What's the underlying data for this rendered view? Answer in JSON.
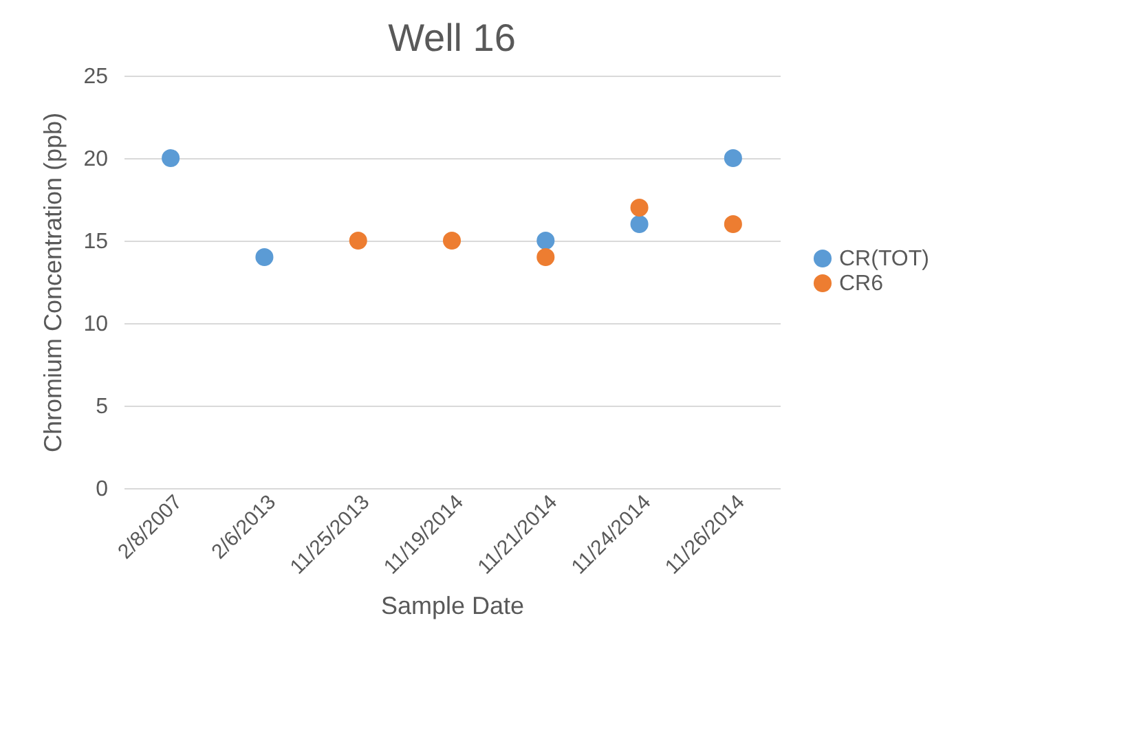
{
  "chart_data": {
    "type": "scatter",
    "title": "Well 16",
    "xlabel": "Sample Date",
    "ylabel": "Chromium Concentration (ppb)",
    "categories": [
      "2/8/2007",
      "2/6/2013",
      "11/25/2013",
      "11/19/2014",
      "11/21/2014",
      "11/24/2014",
      "11/26/2014"
    ],
    "series": [
      {
        "name": "CR(TOT)",
        "color": "#5b9bd5",
        "values": [
          20,
          14,
          null,
          null,
          15,
          16,
          20
        ]
      },
      {
        "name": "CR6",
        "color": "#ed7d31",
        "values": [
          null,
          null,
          15,
          15,
          14,
          17,
          16
        ]
      }
    ],
    "ylim": [
      0,
      25
    ],
    "yticks": [
      0,
      5,
      10,
      15,
      20,
      25
    ],
    "grid": "y",
    "legend": "right",
    "marker": "circle"
  }
}
